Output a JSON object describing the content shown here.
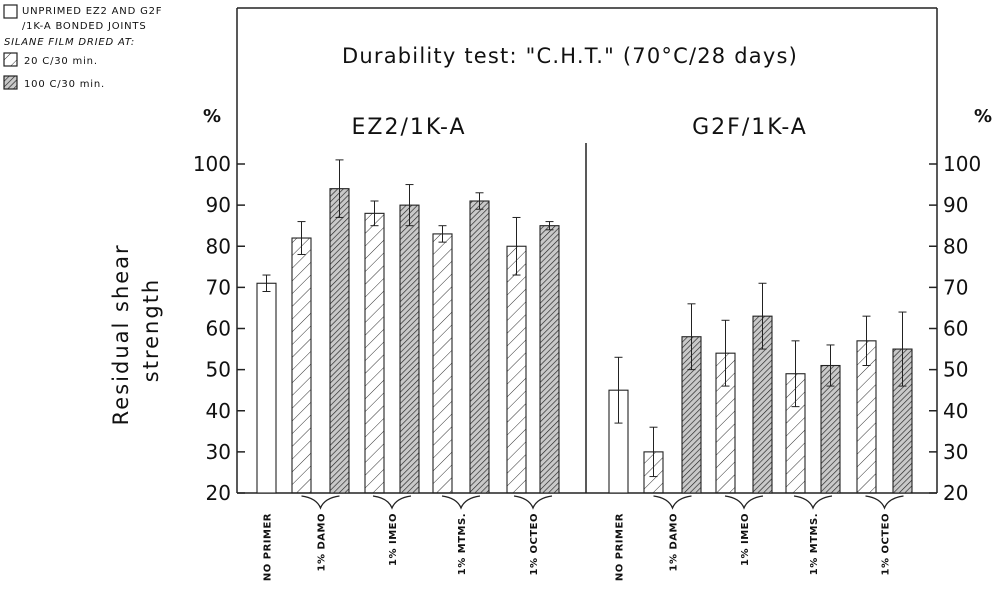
{
  "chart_data": {
    "type": "bar",
    "title": "Durability test: \"C.H.T.\" (70°C/28 days)",
    "ylabel_lines": [
      "Residual shear",
      "strength"
    ],
    "unit": "%",
    "ylim": [
      20,
      100
    ],
    "yticks": [
      20,
      30,
      40,
      50,
      60,
      70,
      80,
      90,
      100
    ],
    "grid": false,
    "legend": {
      "unprimed_lines": [
        "UNPRIMED EZ2 AND G2F",
        "/1K-A BONDED JOINTS"
      ],
      "silane_heading": "SILANE FILM DRIED AT:",
      "entries": [
        {
          "label": "20 C/30 min.",
          "pattern": "light-hatch"
        },
        {
          "label": "100 C/30 min.",
          "pattern": "dense-hatch"
        }
      ]
    },
    "panels": [
      {
        "name": "EZ2/1K-A",
        "categories": [
          "NO PRIMER",
          "1% DAMO",
          "1% IMEO",
          "1% MTMS.",
          "1% OCTEO"
        ],
        "bars": [
          {
            "category": "NO PRIMER",
            "treatment": "unprimed",
            "value": 71,
            "err_low": 69,
            "err_high": 73
          },
          {
            "category": "1% DAMO",
            "treatment": "20 C/30 min.",
            "value": 82,
            "err_low": 78,
            "err_high": 86
          },
          {
            "category": "1% DAMO",
            "treatment": "100 C/30 min.",
            "value": 94,
            "err_low": 87,
            "err_high": 101
          },
          {
            "category": "1% IMEO",
            "treatment": "20 C/30 min.",
            "value": 88,
            "err_low": 85,
            "err_high": 91
          },
          {
            "category": "1% IMEO",
            "treatment": "100 C/30 min.",
            "value": 90,
            "err_low": 85,
            "err_high": 95
          },
          {
            "category": "1% MTMS.",
            "treatment": "20 C/30 min.",
            "value": 83,
            "err_low": 81,
            "err_high": 85
          },
          {
            "category": "1% MTMS.",
            "treatment": "100 C/30 min.",
            "value": 91,
            "err_low": 89,
            "err_high": 93
          },
          {
            "category": "1% OCTEO",
            "treatment": "20 C/30 min.",
            "value": 80,
            "err_low": 73,
            "err_high": 87
          },
          {
            "category": "1% OCTEO",
            "treatment": "100 C/30 min.",
            "value": 85,
            "err_low": 84,
            "err_high": 86
          }
        ]
      },
      {
        "name": "G2F/1K-A",
        "categories": [
          "NO PRIMER",
          "1% DAMO",
          "1% IMEO",
          "1% MTMS.",
          "1% OCTEO"
        ],
        "bars": [
          {
            "category": "NO PRIMER",
            "treatment": "unprimed",
            "value": 45,
            "err_low": 37,
            "err_high": 53
          },
          {
            "category": "1% DAMO",
            "treatment": "20 C/30 min.",
            "value": 30,
            "err_low": 24,
            "err_high": 36
          },
          {
            "category": "1% DAMO",
            "treatment": "100 C/30 min.",
            "value": 58,
            "err_low": 50,
            "err_high": 66
          },
          {
            "category": "1% IMEO",
            "treatment": "20 C/30 min.",
            "value": 54,
            "err_low": 46,
            "err_high": 62
          },
          {
            "category": "1% IMEO",
            "treatment": "100 C/30 min.",
            "value": 63,
            "err_low": 55,
            "err_high": 71
          },
          {
            "category": "1% MTMS.",
            "treatment": "20 C/30 min.",
            "value": 49,
            "err_low": 41,
            "err_high": 57
          },
          {
            "category": "1% MTMS.",
            "treatment": "100 C/30 min.",
            "value": 51,
            "err_low": 46,
            "err_high": 56
          },
          {
            "category": "1% OCTEO",
            "treatment": "20 C/30 min.",
            "value": 57,
            "err_low": 51,
            "err_high": 63
          },
          {
            "category": "1% OCTEO",
            "treatment": "100 C/30 min.",
            "value": 55,
            "err_low": 46,
            "err_high": 64
          }
        ]
      }
    ]
  }
}
